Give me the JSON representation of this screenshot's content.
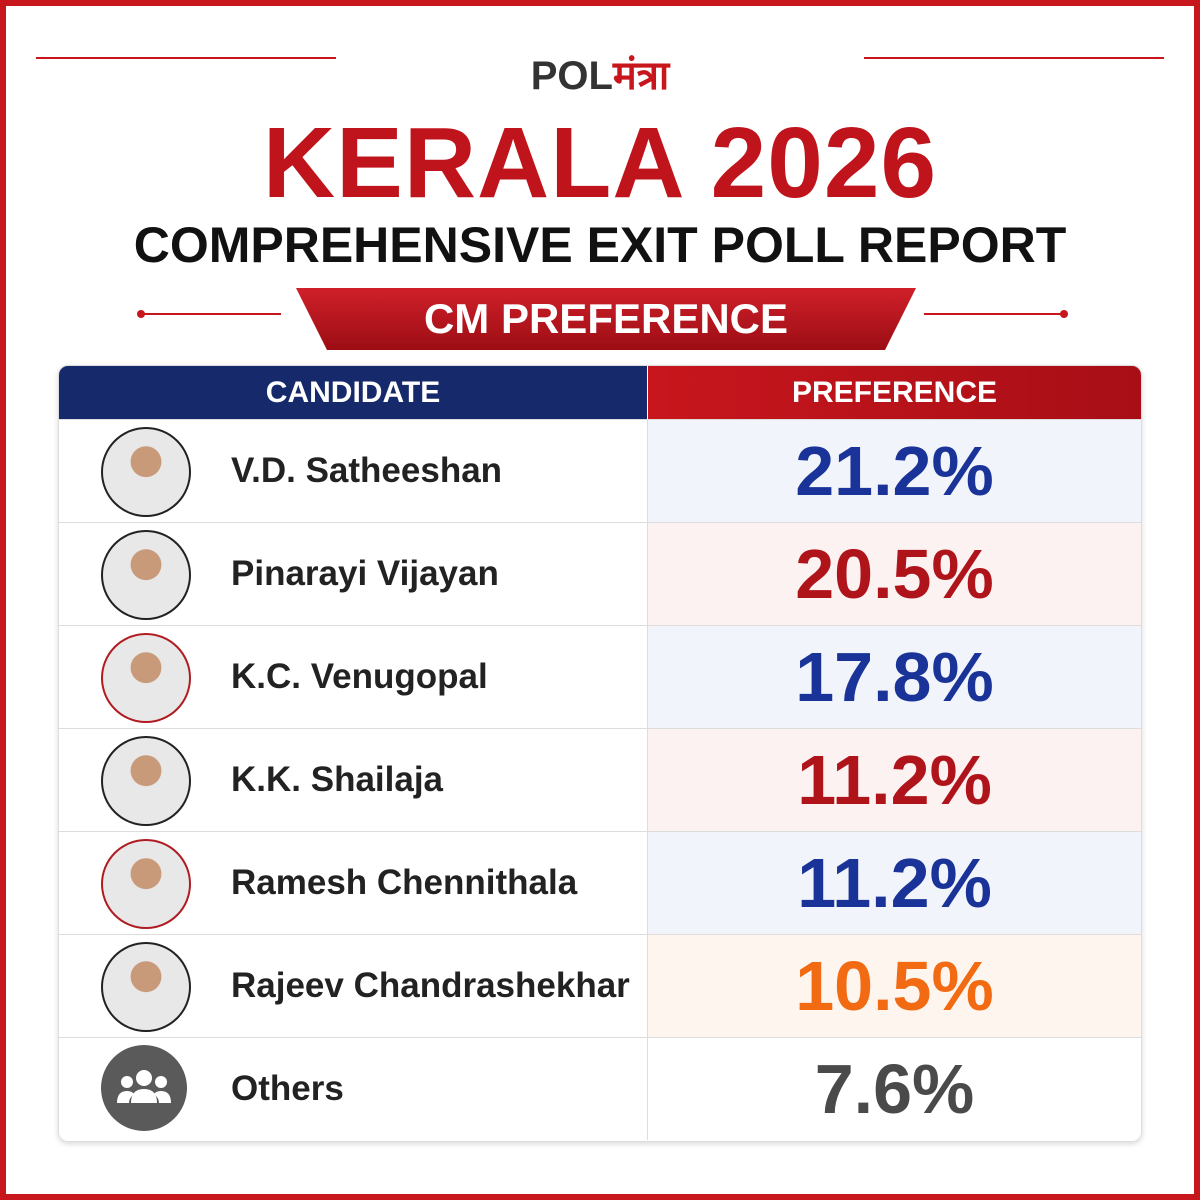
{
  "logo": {
    "latin": "POL",
    "devanagari": "मंत्रा"
  },
  "header": {
    "title": "KERALA 2026",
    "subtitle": "COMPREHENSIVE EXIT POLL REPORT",
    "section": "CM PREFERENCE"
  },
  "table": {
    "columns": [
      "CANDIDATE",
      "PREFERENCE"
    ],
    "rows": [
      [
        "V.D. Satheeshan",
        "21.2%"
      ],
      [
        "Pinarayi Vijayan",
        "20.5%"
      ],
      [
        "K.C. Venugopal",
        "17.8%"
      ],
      [
        "K.K. Shailaja",
        "11.2%"
      ],
      [
        "Ramesh Chennithala",
        "11.2%"
      ],
      [
        "Rajeev Chandrashekhar",
        "10.5%"
      ],
      [
        "Others",
        "7.6%"
      ]
    ]
  }
}
